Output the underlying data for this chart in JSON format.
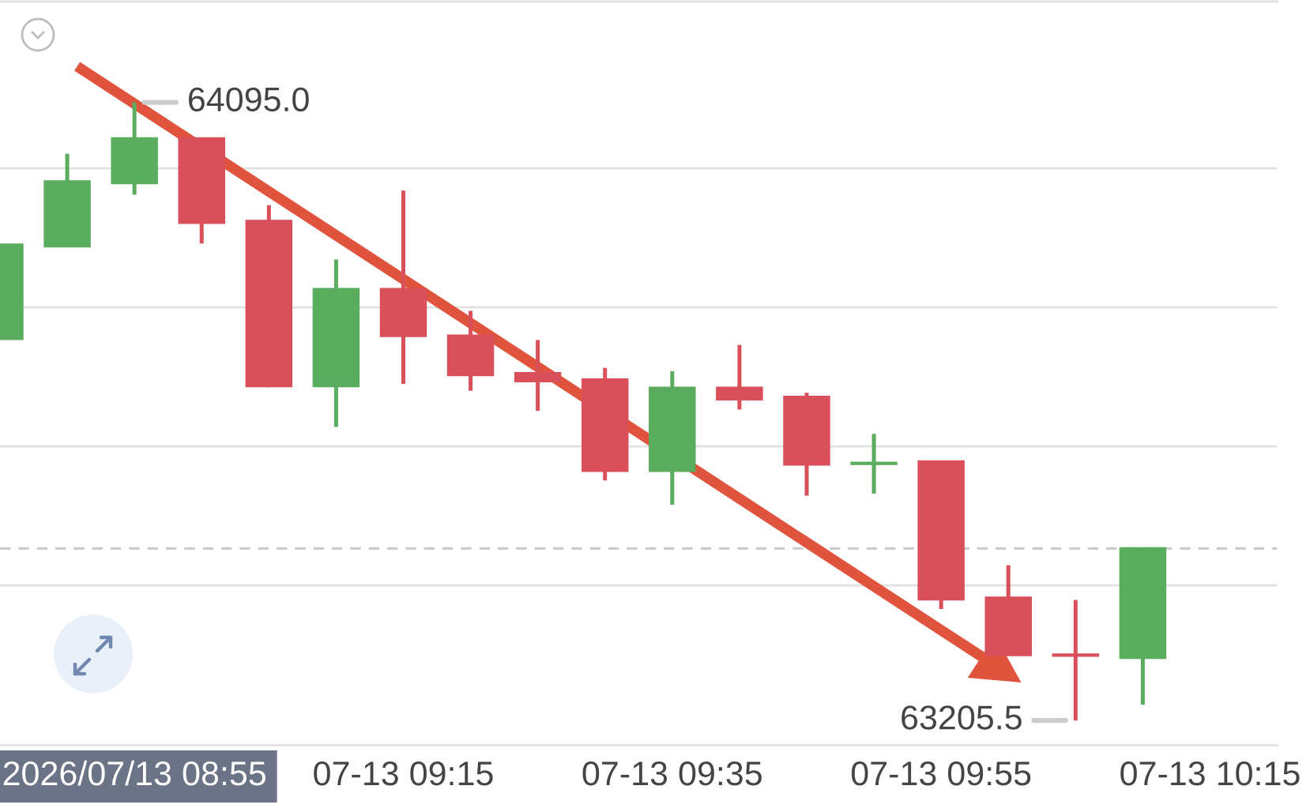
{
  "chart_data": {
    "type": "candlestick",
    "x": [
      "2026-07-13T08:45",
      "2026-07-13T08:50",
      "2026-07-13T08:55",
      "2026-07-13T09:00",
      "2026-07-13T09:05",
      "2026-07-13T09:10",
      "2026-07-13T09:15",
      "2026-07-13T09:20",
      "2026-07-13T09:25",
      "2026-07-13T09:30",
      "2026-07-13T09:35",
      "2026-07-13T09:40",
      "2026-07-13T09:45",
      "2026-07-13T09:50",
      "2026-07-13T09:55",
      "2026-07-13T10:00",
      "2026-07-13T10:05",
      "2026-07-13T10:10"
    ],
    "ohlc": [
      [
        63755,
        63890,
        63755,
        63890
      ],
      [
        63888,
        64021,
        63888,
        63981
      ],
      [
        63979,
        64095.0,
        63962,
        64043
      ],
      [
        64043,
        64043,
        63892,
        63922
      ],
      [
        63924,
        63947,
        63685,
        63687
      ],
      [
        63687,
        63869,
        63628,
        63826
      ],
      [
        63826,
        63968,
        63690,
        63759
      ],
      [
        63759,
        63795,
        63680,
        63703
      ],
      [
        63705,
        63753,
        63651,
        63694
      ],
      [
        63696,
        63713,
        63551,
        63565
      ],
      [
        63565,
        63708,
        63516,
        63684
      ],
      [
        63684,
        63746,
        63653,
        63668
      ],
      [
        63671,
        63677,
        63529,
        63574
      ],
      [
        63575,
        63618,
        63532,
        63576
      ],
      [
        63578,
        63578,
        63366,
        63380
      ],
      [
        63382,
        63429,
        63300,
        63300
      ],
      [
        63300,
        63379,
        63205.5,
        63299
      ],
      [
        63296,
        63453,
        63228,
        63453
      ]
    ],
    "colors": [
      "#5aad5f",
      "#5aad5f",
      "#5aad5f",
      "#d94f5a",
      "#d94f5a",
      "#5aad5f",
      "#d94f5a",
      "#d94f5a",
      "#d94f5a",
      "#d94f5a",
      "#5aad5f",
      "#d94f5a",
      "#d94f5a",
      "#5aad5f",
      "#d94f5a",
      "#d94f5a",
      "#d94f5a",
      "#5aad5f"
    ],
    "annotations": [
      {
        "text": "64095.0",
        "x": "2026-07-13T08:55",
        "y": 64095.0
      },
      {
        "text": "63205.5",
        "x": "2026-07-13T10:05",
        "y": 63205.5
      }
    ],
    "ref_lines": [
      {
        "axis": "y",
        "value": 63453,
        "color": "#cccccc",
        "line_style": "dashed"
      }
    ],
    "xlim": [
      "2026-07-13T08:45",
      "2026-07-13T10:20"
    ],
    "xticks": [
      {
        "value": "2026-07-13T08:55",
        "label": "2026/07/13 08:55"
      },
      {
        "value": "2026-07-13T09:15",
        "label": "07-13 09:15"
      },
      {
        "value": "2026-07-13T09:35",
        "label": "07-13 09:35"
      },
      {
        "value": "2026-07-13T09:55",
        "label": "07-13 09:55"
      },
      {
        "value": "2026-07-13T10:15",
        "label": "07-13 10:15"
      }
    ],
    "ylim": [
      63170,
      64240
    ],
    "yticks": [
      {
        "value": 63400,
        "label": null
      },
      {
        "value": 63600,
        "label": null
      },
      {
        "value": 63800,
        "label": null
      },
      {
        "value": 64000,
        "label": null
      }
    ],
    "grid": "y",
    "tick_labels": "x"
  }
}
